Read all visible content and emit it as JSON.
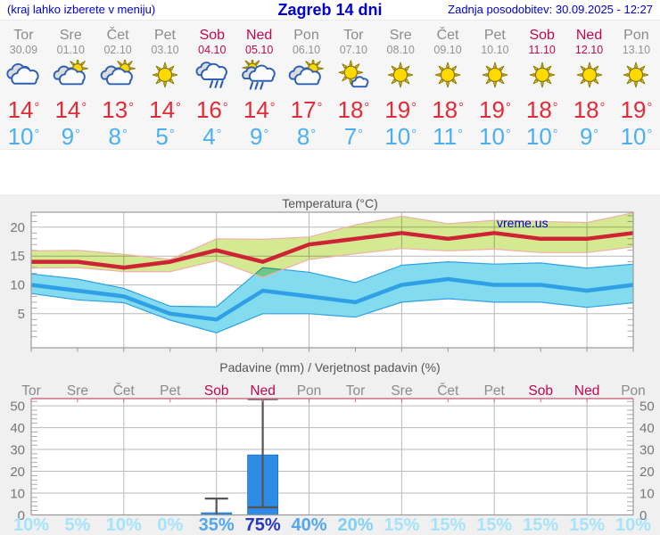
{
  "header": {
    "left_note": "(kraj lahko izberete v meniju)",
    "title": "Zagreb 14 dni",
    "updated": "Zadnja posodobitev: 30.09.2025 - 12:27"
  },
  "watermark": "vreme.us",
  "forecast": {
    "degree_symbol": "°",
    "days": [
      {
        "name": "Tor",
        "date": "30.09",
        "weekend": false,
        "icon": "cloudy",
        "tmax": 14,
        "tmin": 10
      },
      {
        "name": "Sre",
        "date": "01.10",
        "weekend": false,
        "icon": "sun-cloud",
        "tmax": 14,
        "tmin": 9
      },
      {
        "name": "Čet",
        "date": "02.10",
        "weekend": false,
        "icon": "sun-cloud",
        "tmax": 13,
        "tmin": 8
      },
      {
        "name": "Pet",
        "date": "03.10",
        "weekend": false,
        "icon": "sunny",
        "tmax": 14,
        "tmin": 5
      },
      {
        "name": "Sob",
        "date": "04.10",
        "weekend": true,
        "icon": "rain",
        "tmax": 16,
        "tmin": 4
      },
      {
        "name": "Ned",
        "date": "05.10",
        "weekend": true,
        "icon": "sun-rain",
        "tmax": 14,
        "tmin": 9
      },
      {
        "name": "Pon",
        "date": "06.10",
        "weekend": false,
        "icon": "sun-cloud",
        "tmax": 17,
        "tmin": 8
      },
      {
        "name": "Tor",
        "date": "07.10",
        "weekend": false,
        "icon": "sun-small-cloud",
        "tmax": 18,
        "tmin": 7
      },
      {
        "name": "Sre",
        "date": "08.10",
        "weekend": false,
        "icon": "sunny",
        "tmax": 19,
        "tmin": 10
      },
      {
        "name": "Čet",
        "date": "09.10",
        "weekend": false,
        "icon": "sunny",
        "tmax": 18,
        "tmin": 11
      },
      {
        "name": "Pet",
        "date": "10.10",
        "weekend": false,
        "icon": "sunny",
        "tmax": 19,
        "tmin": 10
      },
      {
        "name": "Sob",
        "date": "11.10",
        "weekend": true,
        "icon": "sunny",
        "tmax": 18,
        "tmin": 10
      },
      {
        "name": "Ned",
        "date": "12.10",
        "weekend": true,
        "icon": "sunny",
        "tmax": 18,
        "tmin": 9
      },
      {
        "name": "Pon",
        "date": "13.10",
        "weekend": false,
        "icon": "sunny",
        "tmax": 19,
        "tmin": 10
      }
    ]
  },
  "chart_data": [
    {
      "type": "line",
      "title": "Temperatura (°C)",
      "x_days": [
        "Tor",
        "Sre",
        "Čet",
        "Pet",
        "Sob",
        "Ned",
        "Pon",
        "Tor",
        "Sre",
        "Čet",
        "Pet",
        "Sob",
        "Ned",
        "Pon"
      ],
      "ylim": [
        -0.9,
        22.6
      ],
      "yticks": [
        5,
        10,
        15,
        20
      ],
      "grid": true,
      "series": [
        {
          "name": "min-temp",
          "color": "#30a0e6",
          "band_color": "#82dbee",
          "band_edge": "#30a0e6",
          "values": [
            10,
            9,
            8,
            5,
            4,
            9,
            8,
            7,
            10,
            11,
            10,
            10,
            9,
            10
          ],
          "band_hi": [
            11.9,
            11,
            9.4,
            6.3,
            6.2,
            13,
            12.2,
            10.4,
            13.4,
            14,
            13.6,
            13.8,
            12.9,
            13.6
          ],
          "band_lo": [
            8.5,
            7.4,
            6.9,
            3.9,
            1.7,
            5,
            5,
            4.4,
            7,
            7.6,
            7,
            7,
            6.1,
            6.9
          ]
        },
        {
          "name": "max-temp",
          "color": "#cd2334",
          "band_color": "#d5e992",
          "band_edge": "#f0b0a8",
          "values": [
            14,
            14,
            13,
            14,
            16,
            14,
            17,
            18,
            19,
            18,
            19,
            18,
            18,
            19
          ],
          "band_hi": [
            15.9,
            16,
            15.3,
            14.4,
            18,
            17.9,
            18.3,
            20.4,
            21.9,
            20.6,
            21.2,
            21,
            20.8,
            22.5
          ],
          "band_lo": [
            12.9,
            13,
            12.3,
            12.3,
            14.2,
            11.3,
            14.4,
            15.4,
            16.3,
            15.9,
            16.2,
            15.6,
            15.6,
            16.6
          ]
        }
      ]
    },
    {
      "type": "bar",
      "title": "Padavine (mm) / Verjetnost padavin (%)",
      "categories": [
        "Tor",
        "Sre",
        "Čet",
        "Pet",
        "Sob",
        "Ned",
        "Pon",
        "Tor",
        "Sre",
        "Čet",
        "Pet",
        "Sob",
        "Ned",
        "Pon"
      ],
      "weekend": [
        false,
        false,
        false,
        false,
        true,
        true,
        false,
        false,
        false,
        false,
        false,
        true,
        true,
        false
      ],
      "values": [
        0,
        0,
        0,
        0,
        1,
        27.5,
        0,
        0,
        0,
        0,
        0,
        0,
        0,
        0
      ],
      "whiskers": [
        null,
        null,
        null,
        null,
        {
          "lo": 0,
          "hi": 7.5,
          "cap": 26,
          "lo_cap": false
        },
        {
          "lo": 3.5,
          "hi": 53,
          "cap": 34,
          "lo_cap": true
        },
        null,
        null,
        null,
        null,
        null,
        null,
        null,
        null
      ],
      "probabilities": [
        10,
        5,
        10,
        0,
        35,
        75,
        40,
        20,
        15,
        15,
        15,
        15,
        15,
        10
      ],
      "prob_unit": "%",
      "prob_colors": [
        "#a5e4fa",
        "#a5e4fa",
        "#a5e4fa",
        "#a5e4fa",
        "#53a7ef",
        "#2637c9",
        "#53a7ef",
        "#7fd2f6",
        "#a5e4fa",
        "#a5e4fa",
        "#a5e4fa",
        "#a5e4fa",
        "#a5e4fa",
        "#a5e4fa"
      ],
      "ylim": [
        0,
        53.3
      ],
      "yticks": [
        0,
        10,
        20,
        30,
        40,
        50
      ],
      "bar_color": "#2e8ce6",
      "whisker_color": "#555555",
      "top_axis_color": "#cc7086"
    }
  ]
}
